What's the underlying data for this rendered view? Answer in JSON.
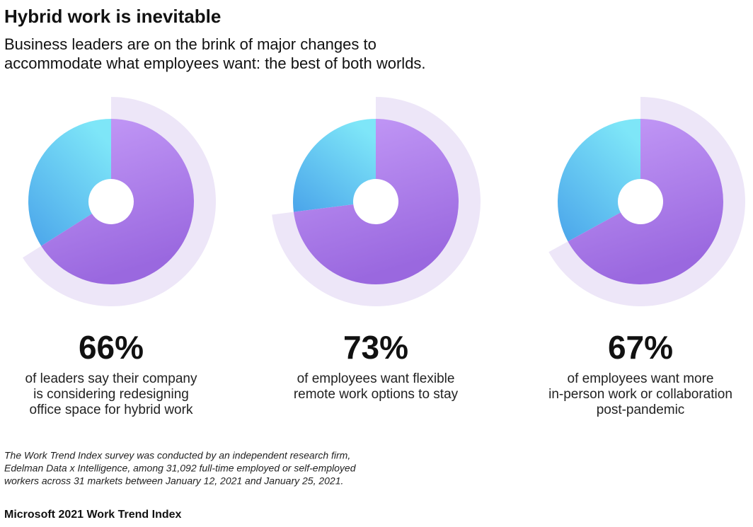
{
  "title": "Hybrid work is inevitable",
  "subtitle": [
    "Business leaders are on the brink of major changes to",
    "accommodate what employees want: the best of both worlds."
  ],
  "chart_data": [
    {
      "type": "donut",
      "values": [
        66
      ],
      "value_labels": [
        "66%"
      ],
      "caption": [
        "of leaders say their company",
        "is considering redesigning",
        "office space for hybrid work"
      ]
    },
    {
      "type": "donut",
      "values": [
        73
      ],
      "value_labels": [
        "73%"
      ],
      "caption": [
        "of employees want flexible",
        "remote work options to stay"
      ]
    },
    {
      "type": "donut",
      "values": [
        67
      ],
      "value_labels": [
        "67%"
      ],
      "caption": [
        "of employees want more",
        "in-person work or collaboration",
        "post-pandemic"
      ]
    }
  ],
  "footnote": [
    "The Work Trend Index survey was conducted by an independent research firm,",
    "Edelman Data x Intelligence, among 31,092 full-time employed or self-employed",
    "workers across 31 markets between January 12, 2021 and January 25, 2021."
  ],
  "source": "Microsoft 2021 Work Trend Index"
}
